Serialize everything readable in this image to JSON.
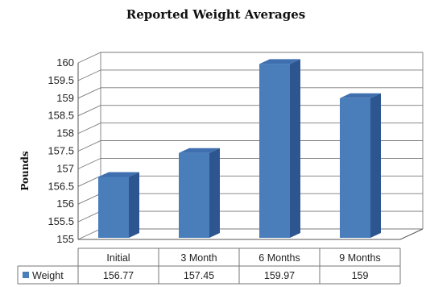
{
  "chart_data": {
    "type": "bar",
    "title": "Reported Weight Averages",
    "ylabel": "Pounds",
    "xlabel": "",
    "categories": [
      "Initial",
      "3 Month",
      "6 Months",
      "9 Months"
    ],
    "series": [
      {
        "name": "Weight",
        "values": [
          156.77,
          157.45,
          159.97,
          159
        ],
        "value_labels": [
          "156.77",
          "157.45",
          "159.97",
          "159"
        ]
      }
    ],
    "ylim": [
      155,
      160
    ],
    "yticks": [
      "155",
      "155.5",
      "156",
      "156.5",
      "157",
      "157.5",
      "158",
      "158.5",
      "159",
      "159.5",
      "160"
    ],
    "grid": true,
    "three_d": true,
    "legend_placement": "data-table-left",
    "colors": {
      "bar_front": "#4a7ebb",
      "bar_side": "#2d5690",
      "bar_top": "#3f6fae",
      "legend_key": "#4a7ebb"
    }
  }
}
